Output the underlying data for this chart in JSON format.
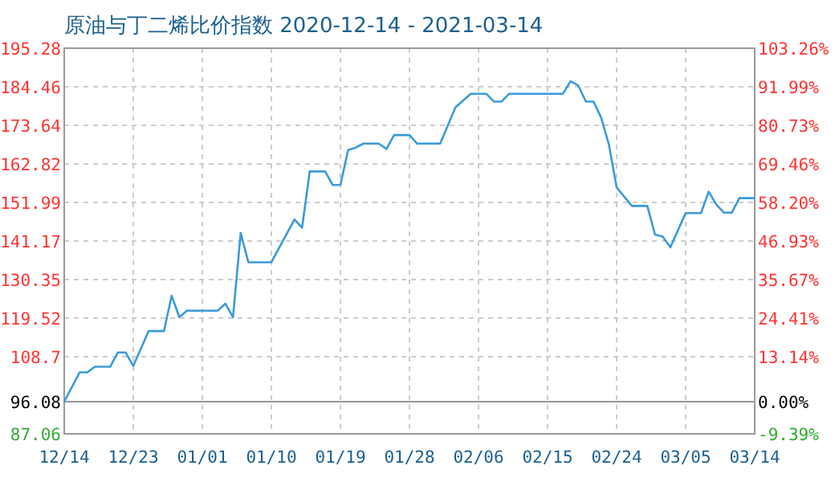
{
  "chart_data": {
    "type": "line",
    "title": "原油与丁二烯比价指数 2020-12-14 - 2021-03-14",
    "x": [
      "2020-12-14",
      "2020-12-16",
      "2020-12-17",
      "2020-12-18",
      "2020-12-20",
      "2020-12-21",
      "2020-12-22",
      "2020-12-23",
      "2020-12-25",
      "2020-12-27",
      "2020-12-28",
      "2020-12-29",
      "2020-12-30",
      "2021-01-03",
      "2021-01-04",
      "2021-01-05",
      "2021-01-06",
      "2021-01-07",
      "2021-01-10",
      "2021-01-13",
      "2021-01-14",
      "2021-01-15",
      "2021-01-17",
      "2021-01-18",
      "2021-01-19",
      "2021-01-20",
      "2021-01-21",
      "2021-01-22",
      "2021-01-24",
      "2021-01-25",
      "2021-01-26",
      "2021-01-28",
      "2021-01-29",
      "2021-02-01",
      "2021-02-03",
      "2021-02-05",
      "2021-02-07",
      "2021-02-08",
      "2021-02-09",
      "2021-02-10",
      "2021-02-17",
      "2021-02-18",
      "2021-02-19",
      "2021-02-20",
      "2021-02-21",
      "2021-02-22",
      "2021-02-23",
      "2021-02-24",
      "2021-02-26",
      "2021-02-28",
      "2021-03-01",
      "2021-03-02",
      "2021-03-03",
      "2021-03-05",
      "2021-03-07",
      "2021-03-08",
      "2021-03-09",
      "2021-03-10",
      "2021-03-11",
      "2021-03-12",
      "2021-03-14"
    ],
    "series": [
      {
        "color": "#3a9ad9",
        "values": [
          96.08,
          104.3,
          104.3,
          105.9,
          105.9,
          109.9,
          109.9,
          106.1,
          115.9,
          115.9,
          125.8,
          119.8,
          121.6,
          121.6,
          123.6,
          119.8,
          143.4,
          135.2,
          135.2,
          147.2,
          144.9,
          160.7,
          160.7,
          156.9,
          156.9,
          166.7,
          167.4,
          168.5,
          168.5,
          167.0,
          170.9,
          170.9,
          168.5,
          168.5,
          178.7,
          182.5,
          182.5,
          180.3,
          180.3,
          182.5,
          182.5,
          186.0,
          184.8,
          180.3,
          180.3,
          175.7,
          168.2,
          156.2,
          151.0,
          151.0,
          143.0,
          142.4,
          139.4,
          149.0,
          149.0,
          155.0,
          151.4,
          149.1,
          149.1,
          153.2,
          153.2
        ]
      }
    ],
    "xlim": [
      "2020-12-14",
      "2021-03-14"
    ],
    "xticks": [
      {
        "value": "2020-12-14",
        "label": "12/14"
      },
      {
        "value": "2020-12-23",
        "label": "12/23"
      },
      {
        "value": "2021-01-01",
        "label": "01/01"
      },
      {
        "value": "2021-01-10",
        "label": "01/10"
      },
      {
        "value": "2021-01-19",
        "label": "01/19"
      },
      {
        "value": "2021-01-28",
        "label": "01/28"
      },
      {
        "value": "2021-02-06",
        "label": "02/06"
      },
      {
        "value": "2021-02-15",
        "label": "02/15"
      },
      {
        "value": "2021-02-24",
        "label": "02/24"
      },
      {
        "value": "2021-03-05",
        "label": "03/05"
      },
      {
        "value": "2021-03-14",
        "label": "03/14"
      }
    ],
    "ylim": [
      87.06,
      195.28
    ],
    "yticks": [
      87.06,
      96.08,
      108.7,
      119.52,
      130.35,
      141.17,
      151.99,
      162.82,
      173.64,
      184.46,
      195.28
    ],
    "y2lim": [
      -9.39,
      103.26
    ],
    "y2ticks": [
      {
        "value": -9.39,
        "label": "-9.39%"
      },
      {
        "value": 0,
        "label": "0.00%"
      },
      {
        "value": 13.14,
        "label": "13.14%"
      },
      {
        "value": 24.41,
        "label": "24.41%"
      },
      {
        "value": 35.67,
        "label": "35.67%"
      },
      {
        "value": 46.93,
        "label": "46.93%"
      },
      {
        "value": 58.2,
        "label": "58.20%"
      },
      {
        "value": 69.46,
        "label": "69.46%"
      },
      {
        "value": 80.73,
        "label": "80.73%"
      },
      {
        "value": 91.99,
        "label": "91.99%"
      },
      {
        "value": 103.26,
        "label": "103.26%"
      }
    ],
    "grid": true,
    "marker": "none",
    "line_style": "solid"
  }
}
